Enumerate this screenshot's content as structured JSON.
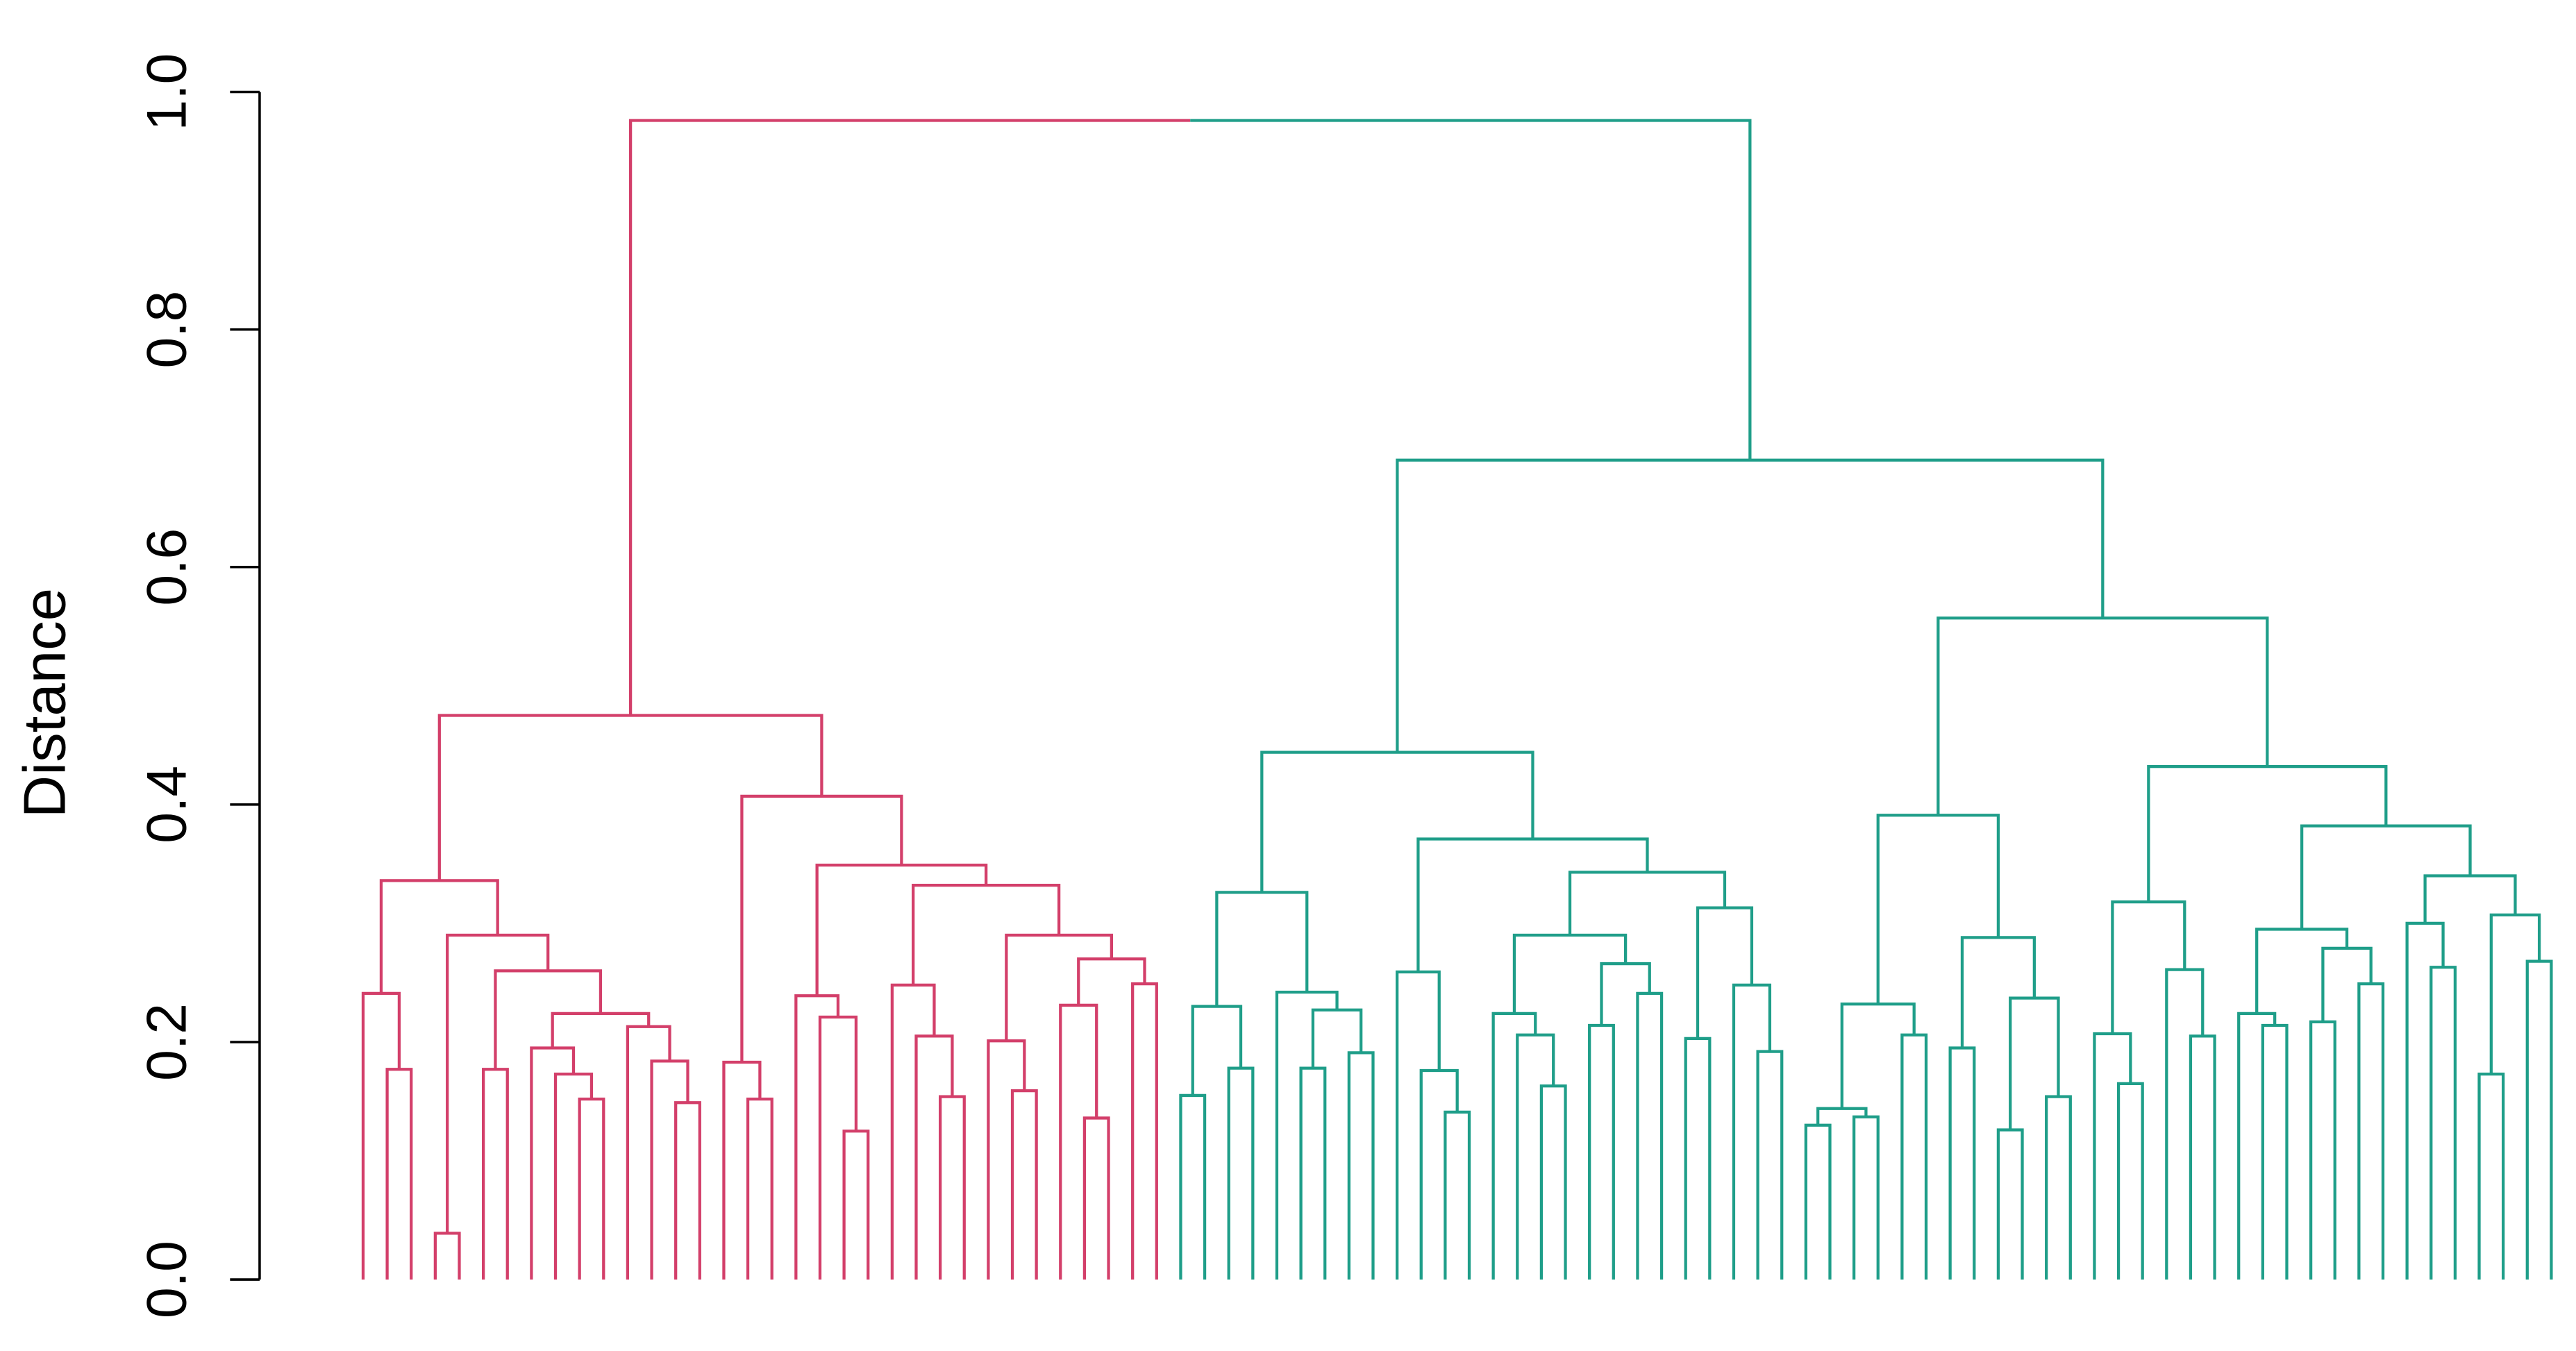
{
  "chart_data": {
    "type": "dendrogram",
    "y_label": "Distance",
    "ylim": [
      0,
      1
    ],
    "yticks": [
      {
        "value": 0,
        "label": "0.0"
      },
      {
        "value": 0.2,
        "label": "0.2"
      },
      {
        "value": 0.4,
        "label": "0.4"
      },
      {
        "value": 0.6,
        "label": "0.6"
      },
      {
        "value": 0.8,
        "label": "0.8"
      },
      {
        "value": 1,
        "label": "1.0"
      }
    ],
    "tree": {
      "height": 0.976,
      "children": [
        {
          "color": "#d33f6a",
          "height": 0.475,
          "children": [
            {
              "height": 0.336,
              "children": [
                {
                  "height": 0.241,
                  "children": [
                    0,
                    {
                      "height": 0.177,
                      "children": [
                        0,
                        0
                      ]
                    }
                  ]
                },
                {
                  "height": 0.29,
                  "children": [
                    {
                      "height": 0.039,
                      "children": [
                        0,
                        0
                      ]
                    },
                    {
                      "height": 0.26,
                      "children": [
                        {
                          "height": 0.177,
                          "children": [
                            0,
                            0
                          ]
                        },
                        {
                          "height": 0.224,
                          "children": [
                            {
                              "height": 0.195,
                              "children": [
                                0,
                                {
                                  "height": 0.173,
                                  "children": [
                                    0,
                                    {
                                      "height": 0.152,
                                      "children": [
                                        0,
                                        0
                                      ]
                                    }
                                  ]
                                }
                              ]
                            },
                            {
                              "height": 0.213,
                              "children": [
                                0,
                                {
                                  "height": 0.184,
                                  "children": [
                                    0,
                                    {
                                      "height": 0.149,
                                      "children": [
                                        0,
                                        0
                                      ]
                                    }
                                  ]
                                }
                              ]
                            }
                          ]
                        }
                      ]
                    }
                  ]
                }
              ]
            },
            {
              "height": 0.407,
              "children": [
                {
                  "height": 0.183,
                  "children": [
                    0,
                    {
                      "height": 0.152,
                      "children": [
                        0,
                        0
                      ]
                    }
                  ]
                },
                {
                  "height": 0.349,
                  "children": [
                    {
                      "height": 0.239,
                      "children": [
                        0,
                        {
                          "height": 0.221,
                          "children": [
                            0,
                            {
                              "height": 0.125,
                              "children": [
                                0,
                                0
                              ]
                            }
                          ]
                        }
                      ]
                    },
                    {
                      "height": 0.332,
                      "children": [
                        {
                          "height": 0.248,
                          "children": [
                            0,
                            {
                              "height": 0.205,
                              "children": [
                                0,
                                {
                                  "height": 0.154,
                                  "children": [
                                    0,
                                    0
                                  ]
                                }
                              ]
                            }
                          ]
                        },
                        {
                          "height": 0.29,
                          "children": [
                            {
                              "height": 0.201,
                              "children": [
                                0,
                                {
                                  "height": 0.159,
                                  "children": [
                                    0,
                                    0
                                  ]
                                }
                              ]
                            },
                            {
                              "height": 0.27,
                              "children": [
                                {
                                  "height": 0.231,
                                  "children": [
                                    0,
                                    {
                                      "height": 0.136,
                                      "children": [
                                        0,
                                        0
                                      ]
                                    }
                                  ]
                                },
                                {
                                  "height": 0.249,
                                  "children": [
                                    0,
                                    0
                                  ]
                                }
                              ]
                            }
                          ]
                        }
                      ]
                    }
                  ]
                }
              ]
            }
          ]
        },
        {
          "color": "#1f9e89",
          "height": 0.69,
          "children": [
            {
              "height": 0.444,
              "children": [
                {
                  "height": 0.326,
                  "children": [
                    {
                      "height": 0.23,
                      "children": [
                        {
                          "height": 0.155,
                          "children": [
                            0,
                            0
                          ]
                        },
                        {
                          "height": 0.178,
                          "children": [
                            0,
                            0
                          ]
                        }
                      ]
                    },
                    {
                      "height": 0.242,
                      "children": [
                        0,
                        {
                          "height": 0.227,
                          "children": [
                            {
                              "height": 0.178,
                              "children": [
                                0,
                                0
                              ]
                            },
                            {
                              "height": 0.191,
                              "children": [
                                0,
                                0
                              ]
                            }
                          ]
                        }
                      ]
                    }
                  ]
                },
                {
                  "height": 0.371,
                  "children": [
                    {
                      "height": 0.259,
                      "children": [
                        0,
                        {
                          "height": 0.176,
                          "children": [
                            0,
                            {
                              "height": 0.141,
                              "children": [
                                0,
                                0
                              ]
                            }
                          ]
                        }
                      ]
                    },
                    {
                      "height": 0.343,
                      "children": [
                        {
                          "height": 0.29,
                          "children": [
                            {
                              "height": 0.224,
                              "children": [
                                0,
                                {
                                  "height": 0.206,
                                  "children": [
                                    0,
                                    {
                                      "height": 0.163,
                                      "children": [
                                        0,
                                        0
                                      ]
                                    }
                                  ]
                                }
                              ]
                            },
                            {
                              "height": 0.266,
                              "children": [
                                {
                                  "height": 0.214,
                                  "children": [
                                    0,
                                    0
                                  ]
                                },
                                {
                                  "height": 0.241,
                                  "children": [
                                    0,
                                    0
                                  ]
                                }
                              ]
                            }
                          ]
                        },
                        {
                          "height": 0.313,
                          "children": [
                            {
                              "height": 0.203,
                              "children": [
                                0,
                                0
                              ]
                            },
                            {
                              "height": 0.248,
                              "children": [
                                0,
                                {
                                  "height": 0.192,
                                  "children": [
                                    0,
                                    0
                                  ]
                                }
                              ]
                            }
                          ]
                        }
                      ]
                    }
                  ]
                }
              ]
            },
            {
              "height": 0.557,
              "children": [
                {
                  "height": 0.391,
                  "children": [
                    {
                      "height": 0.232,
                      "children": [
                        {
                          "height": 0.144,
                          "children": [
                            {
                              "height": 0.13,
                              "children": [
                                0,
                                0
                              ]
                            },
                            {
                              "height": 0.137,
                              "children": [
                                0,
                                0
                              ]
                            }
                          ]
                        },
                        {
                          "height": 0.206,
                          "children": [
                            0,
                            0
                          ]
                        }
                      ]
                    },
                    {
                      "height": 0.288,
                      "children": [
                        {
                          "height": 0.195,
                          "children": [
                            0,
                            0
                          ]
                        },
                        {
                          "height": 0.237,
                          "children": [
                            {
                              "height": 0.126,
                              "children": [
                                0,
                                0
                              ]
                            },
                            {
                              "height": 0.154,
                              "children": [
                                0,
                                0
                              ]
                            }
                          ]
                        }
                      ]
                    }
                  ]
                },
                {
                  "height": 0.432,
                  "children": [
                    {
                      "height": 0.318,
                      "children": [
                        {
                          "height": 0.207,
                          "children": [
                            0,
                            {
                              "height": 0.165,
                              "children": [
                                0,
                                0
                              ]
                            }
                          ]
                        },
                        {
                          "height": 0.261,
                          "children": [
                            0,
                            {
                              "height": 0.205,
                              "children": [
                                0,
                                0
                              ]
                            }
                          ]
                        }
                      ]
                    },
                    {
                      "height": 0.382,
                      "children": [
                        {
                          "height": 0.295,
                          "children": [
                            {
                              "height": 0.224,
                              "children": [
                                0,
                                {
                                  "height": 0.214,
                                  "children": [
                                    0,
                                    0
                                  ]
                                }
                              ]
                            },
                            {
                              "height": 0.279,
                              "children": [
                                {
                                  "height": 0.217,
                                  "children": [
                                    0,
                                    0
                                  ]
                                },
                                {
                                  "height": 0.249,
                                  "children": [
                                    0,
                                    0
                                  ]
                                }
                              ]
                            }
                          ]
                        },
                        {
                          "height": 0.34,
                          "children": [
                            {
                              "height": 0.3,
                              "children": [
                                0,
                                {
                                  "height": 0.263,
                                  "children": [
                                    0,
                                    0
                                  ]
                                }
                              ]
                            },
                            {
                              "height": 0.307,
                              "children": [
                                {
                                  "height": 0.173,
                                  "children": [
                                    0,
                                    0
                                  ]
                                },
                                {
                                  "height": 0.268,
                                  "children": [
                                    0,
                                    0
                                  ]
                                }
                              ]
                            }
                          ]
                        }
                      ]
                    }
                  ]
                }
              ]
            }
          ]
        }
      ]
    }
  }
}
